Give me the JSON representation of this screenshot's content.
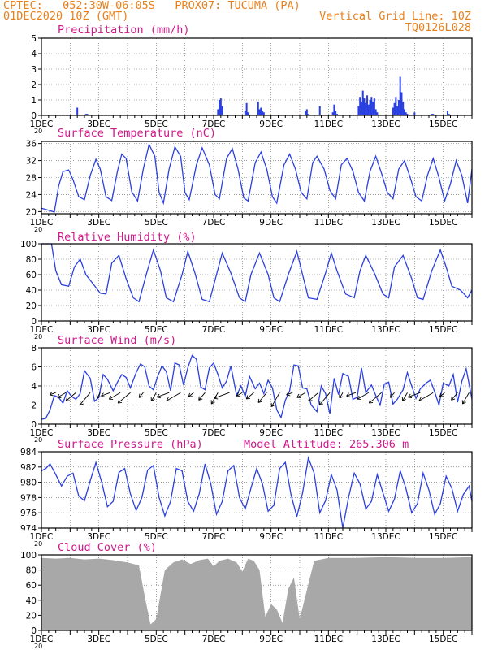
{
  "header": {
    "line1_left": "CPTEC:   052:30W-06:05S   PROX07: TUCUMA (PA)",
    "line2_left": "01DEC2020 10Z (GMT)",
    "line2_right": "Vertical Grid Line: 10Z",
    "line3_right": "TQ0126L028"
  },
  "colors": {
    "header": "#e8801c",
    "panel_title": "#d0188a",
    "series": "#2a3fe0",
    "cloud": "#a8a8a8",
    "wind_arrow": "#000000"
  },
  "x_axis_ticks": [
    "1DEC",
    "3DEC",
    "5DEC",
    "7DEC",
    "9DEC",
    "11DEC",
    "13DEC",
    "15DEC"
  ],
  "x_axis_overflow_label": "20",
  "x_range_days": [
    1,
    16
  ],
  "model_altitude": "Model Altitude: 265.306 m",
  "chart_data": [
    {
      "type": "bar",
      "title": "Precipitation (mm/h)",
      "ylim": [
        0,
        5
      ],
      "yticks": [
        "0",
        "1",
        "2",
        "3",
        "4",
        "5"
      ],
      "grid": true,
      "x": [
        2.25,
        2.55,
        2.6,
        7.15,
        7.2,
        7.25,
        7.3,
        8.1,
        8.15,
        8.2,
        8.55,
        8.6,
        8.65,
        8.7,
        8.75,
        10.2,
        10.25,
        10.3,
        10.7,
        11.15,
        11.2,
        11.25,
        11.3,
        12.05,
        12.1,
        12.15,
        12.2,
        12.25,
        12.3,
        12.35,
        12.4,
        12.45,
        12.5,
        12.55,
        12.6,
        12.65,
        12.7,
        13.25,
        13.3,
        13.35,
        13.4,
        13.45,
        13.5,
        13.55,
        13.6,
        13.65,
        13.7,
        13.75,
        14.0,
        14.6,
        14.65,
        15.15,
        15.2
      ],
      "values": [
        0.5,
        0.1,
        0.1,
        0.4,
        1.0,
        1.1,
        0.6,
        0.3,
        0.8,
        0.2,
        0.9,
        0.4,
        0.5,
        0.3,
        0.2,
        0.3,
        0.4,
        0.1,
        0.6,
        0.2,
        0.7,
        0.3,
        0.1,
        0.6,
        1.2,
        0.9,
        1.6,
        1.1,
        0.8,
        1.3,
        0.7,
        1.0,
        1.2,
        0.9,
        1.1,
        0.4,
        0.2,
        0.5,
        0.8,
        1.2,
        0.6,
        1.0,
        2.5,
        1.5,
        0.9,
        0.4,
        0.2,
        0.1,
        0.2,
        0.1,
        0.1,
        0.3,
        0.1
      ]
    },
    {
      "type": "line",
      "title": "Surface Temperature (nC)",
      "ylim": [
        19.5,
        36.5
      ],
      "yticks": [
        "20",
        "24",
        "28",
        "32",
        "36"
      ],
      "grid": true,
      "x": [
        1.0,
        1.2,
        1.45,
        1.6,
        1.75,
        1.95,
        2.1,
        2.3,
        2.5,
        2.7,
        2.9,
        3.05,
        3.25,
        3.45,
        3.65,
        3.8,
        3.95,
        4.15,
        4.35,
        4.55,
        4.75,
        4.95,
        5.1,
        5.25,
        5.45,
        5.65,
        5.85,
        6.0,
        6.15,
        6.4,
        6.6,
        6.85,
        7.05,
        7.2,
        7.45,
        7.65,
        7.85,
        8.05,
        8.2,
        8.45,
        8.65,
        8.85,
        9.05,
        9.2,
        9.45,
        9.65,
        9.85,
        10.05,
        10.25,
        10.45,
        10.6,
        10.85,
        11.05,
        11.25,
        11.45,
        11.65,
        11.85,
        12.05,
        12.25,
        12.45,
        12.65,
        12.85,
        13.05,
        13.25,
        13.45,
        13.65,
        13.85,
        14.05,
        14.25,
        14.45,
        14.65,
        14.85,
        15.05,
        15.25,
        15.45,
        15.65,
        15.85,
        16.0
      ],
      "values": [
        20.8,
        20.4,
        19.9,
        26.0,
        29.4,
        29.8,
        27.5,
        23.5,
        22.8,
        28.5,
        32.3,
        30.0,
        23.5,
        22.6,
        29.5,
        33.5,
        32.5,
        24.6,
        22.5,
        30.0,
        35.8,
        33.0,
        24.5,
        22.0,
        30.0,
        35.2,
        33.0,
        24.5,
        22.8,
        31.0,
        35.0,
        31.0,
        24.0,
        23.0,
        32.5,
        34.8,
        30.0,
        23.2,
        22.5,
        31.5,
        34.0,
        30.0,
        23.5,
        22.0,
        31.0,
        33.5,
        30.0,
        24.5,
        23.0,
        31.5,
        33.0,
        30.0,
        25.0,
        23.0,
        31.0,
        32.5,
        29.5,
        24.5,
        22.5,
        29.5,
        33.0,
        29.0,
        24.5,
        23.0,
        30.0,
        32.0,
        28.0,
        23.5,
        22.5,
        28.5,
        32.5,
        28.0,
        22.5,
        26.5,
        32.0,
        28.5,
        22.0,
        30.0
      ]
    },
    {
      "type": "line",
      "title": "Relative Humidity (%)",
      "ylim": [
        0,
        100
      ],
      "yticks": [
        "0",
        "20",
        "40",
        "60",
        "80",
        "100"
      ],
      "grid": true,
      "x": [
        1.0,
        1.35,
        1.5,
        1.7,
        1.95,
        2.15,
        2.35,
        2.55,
        2.8,
        3.05,
        3.25,
        3.45,
        3.7,
        3.95,
        4.2,
        4.4,
        4.65,
        4.9,
        5.15,
        5.35,
        5.6,
        5.9,
        6.1,
        6.35,
        6.6,
        6.85,
        7.1,
        7.3,
        7.6,
        7.9,
        8.1,
        8.3,
        8.6,
        8.9,
        9.1,
        9.3,
        9.6,
        9.9,
        10.1,
        10.3,
        10.6,
        10.9,
        11.1,
        11.3,
        11.6,
        11.9,
        12.1,
        12.3,
        12.6,
        12.9,
        13.1,
        13.3,
        13.6,
        13.9,
        14.1,
        14.3,
        14.6,
        14.9,
        15.1,
        15.3,
        15.6,
        15.85,
        16.0
      ],
      "values": [
        100,
        100,
        65,
        47,
        45,
        70,
        80,
        60,
        48,
        36,
        35,
        75,
        85,
        55,
        30,
        25,
        60,
        92,
        65,
        30,
        25,
        60,
        90,
        62,
        28,
        25,
        60,
        88,
        62,
        30,
        25,
        60,
        88,
        60,
        30,
        25,
        60,
        90,
        60,
        30,
        28,
        62,
        88,
        65,
        35,
        30,
        65,
        85,
        62,
        35,
        30,
        70,
        85,
        55,
        30,
        28,
        65,
        92,
        70,
        45,
        40,
        30,
        40
      ]
    },
    {
      "type": "line",
      "title": "Surface Wind (m/s)",
      "ylim": [
        0,
        8
      ],
      "yticks": [
        "0",
        "2",
        "4",
        "6",
        "8"
      ],
      "grid": true,
      "x": [
        1.0,
        1.15,
        1.3,
        1.45,
        1.6,
        1.75,
        1.9,
        2.05,
        2.2,
        2.35,
        2.5,
        2.7,
        2.85,
        3.0,
        3.15,
        3.3,
        3.5,
        3.65,
        3.8,
        3.95,
        4.1,
        4.3,
        4.45,
        4.6,
        4.75,
        4.9,
        5.05,
        5.2,
        5.35,
        5.5,
        5.65,
        5.8,
        5.95,
        6.1,
        6.25,
        6.4,
        6.55,
        6.7,
        6.85,
        7.0,
        7.15,
        7.3,
        7.45,
        7.6,
        7.8,
        7.95,
        8.1,
        8.25,
        8.45,
        8.6,
        8.75,
        8.9,
        9.05,
        9.2,
        9.35,
        9.5,
        9.65,
        9.8,
        9.95,
        10.1,
        10.25,
        10.4,
        10.6,
        10.75,
        10.9,
        11.05,
        11.2,
        11.35,
        11.5,
        11.7,
        11.85,
        12.0,
        12.15,
        12.3,
        12.5,
        12.65,
        12.8,
        12.95,
        13.1,
        13.25,
        13.4,
        13.6,
        13.75,
        13.9,
        14.05,
        14.2,
        14.4,
        14.55,
        14.7,
        14.85,
        15.0,
        15.2,
        15.35,
        15.5,
        15.65,
        15.8,
        16.0
      ],
      "values": [
        0.5,
        0.6,
        1.5,
        3.0,
        2.8,
        2.2,
        3.5,
        2.9,
        2.6,
        3.2,
        5.6,
        4.8,
        2.4,
        2.8,
        5.2,
        4.7,
        3.5,
        4.4,
        5.2,
        4.9,
        3.8,
        5.4,
        6.3,
        6.0,
        4.0,
        3.6,
        5.0,
        6.1,
        5.5,
        3.5,
        6.4,
        6.2,
        4.1,
        5.9,
        7.2,
        6.8,
        3.9,
        3.6,
        5.9,
        6.4,
        5.2,
        3.8,
        4.5,
        6.1,
        3.0,
        4.0,
        2.9,
        5.0,
        3.7,
        4.3,
        3.2,
        4.6,
        3.8,
        1.5,
        0.7,
        2.5,
        3.5,
        6.2,
        6.1,
        3.8,
        3.7,
        2.0,
        1.3,
        4.0,
        3.2,
        1.1,
        4.8,
        3.1,
        5.3,
        5.0,
        2.6,
        2.8,
        5.9,
        3.3,
        4.1,
        3.0,
        2.0,
        4.2,
        4.4,
        2.1,
        2.6,
        3.6,
        5.4,
        4.0,
        2.7,
        3.7,
        4.3,
        4.6,
        3.4,
        2.0,
        4.3,
        4.0,
        5.2,
        2.3,
        4.5,
        5.8,
        2.6
      ]
    },
    {
      "type": "line",
      "title": "Surface Pressure (hPa)",
      "ylim": [
        974,
        984
      ],
      "yticks": [
        "974",
        "976",
        "978",
        "980",
        "982",
        "984"
      ],
      "grid": true,
      "x": [
        1.0,
        1.15,
        1.3,
        1.5,
        1.7,
        1.9,
        2.1,
        2.3,
        2.5,
        2.7,
        2.9,
        3.1,
        3.3,
        3.5,
        3.7,
        3.9,
        4.1,
        4.3,
        4.5,
        4.7,
        4.9,
        5.1,
        5.3,
        5.5,
        5.7,
        5.9,
        6.1,
        6.3,
        6.5,
        6.7,
        6.9,
        7.1,
        7.3,
        7.5,
        7.7,
        7.9,
        8.1,
        8.3,
        8.5,
        8.7,
        8.9,
        9.1,
        9.3,
        9.5,
        9.7,
        9.9,
        10.1,
        10.3,
        10.5,
        10.7,
        10.9,
        11.1,
        11.3,
        11.5,
        11.7,
        11.9,
        12.1,
        12.3,
        12.5,
        12.7,
        12.9,
        13.1,
        13.3,
        13.5,
        13.7,
        13.9,
        14.1,
        14.3,
        14.5,
        14.7,
        14.9,
        15.1,
        15.3,
        15.5,
        15.7,
        15.9,
        16.0
      ],
      "values": [
        981.5,
        981.8,
        982.4,
        981.0,
        979.5,
        980.8,
        981.2,
        978.2,
        977.6,
        980.2,
        982.6,
        980.0,
        976.8,
        977.5,
        981.3,
        981.8,
        978.5,
        976.3,
        978.0,
        981.6,
        982.2,
        978.0,
        975.6,
        977.5,
        981.8,
        981.5,
        977.5,
        976.2,
        978.5,
        982.4,
        979.8,
        975.8,
        977.5,
        981.5,
        982.2,
        978.0,
        976.5,
        979.2,
        981.8,
        979.8,
        976.2,
        977.0,
        981.8,
        982.6,
        978.3,
        975.5,
        978.6,
        983.2,
        981.2,
        976.0,
        977.6,
        981.0,
        979.0,
        973.8,
        978.0,
        981.2,
        979.8,
        976.5,
        977.5,
        981.0,
        978.6,
        976.2,
        977.8,
        981.5,
        979.2,
        976.0,
        977.2,
        981.2,
        979.0,
        975.8,
        977.2,
        980.8,
        979.2,
        976.2,
        978.4,
        979.5,
        977.5
      ]
    },
    {
      "type": "area",
      "title": "Cloud Cover (%)",
      "ylim": [
        0,
        100
      ],
      "yticks": [
        "0",
        "20",
        "40",
        "60",
        "80",
        "100"
      ],
      "grid": true,
      "x": [
        1.0,
        1.5,
        2.0,
        2.5,
        3.0,
        3.5,
        4.0,
        4.4,
        4.6,
        4.8,
        5.0,
        5.3,
        5.6,
        5.9,
        6.2,
        6.5,
        6.8,
        7.0,
        7.2,
        7.5,
        7.8,
        8.0,
        8.2,
        8.4,
        8.6,
        8.8,
        9.0,
        9.2,
        9.4,
        9.6,
        9.8,
        10.0,
        10.5,
        11.0,
        12.0,
        13.0,
        14.0,
        15.0,
        16.0
      ],
      "values": [
        96,
        95,
        96,
        94,
        95,
        93,
        90,
        86,
        45,
        8,
        15,
        80,
        90,
        94,
        88,
        93,
        95,
        85,
        92,
        95,
        90,
        78,
        95,
        92,
        80,
        18,
        35,
        28,
        10,
        55,
        70,
        15,
        92,
        96,
        96,
        97,
        96,
        96,
        97
      ]
    }
  ]
}
